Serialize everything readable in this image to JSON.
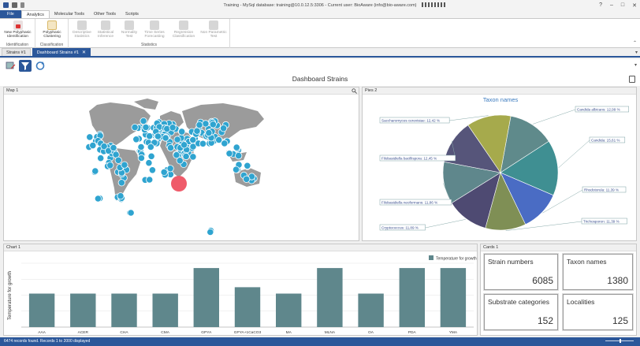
{
  "window": {
    "title": "Training - MySql database: training@10.0.12.5:3306 - Current user: BioAware (info@bio-aware.com)",
    "controls": [
      "?",
      "–",
      "□",
      "✕"
    ]
  },
  "ribbon_tabs": [
    "File",
    "Analytics",
    "Molecular Tools",
    "Other Tools",
    "Scripts"
  ],
  "ribbon": {
    "groups": [
      {
        "label": "Identification",
        "buttons": [
          {
            "label1": "New Polyphasic",
            "label2": "Identification",
            "icon": "id-icon",
            "disabled": false
          }
        ]
      },
      {
        "label": "Classification",
        "buttons": [
          {
            "label1": "Polyphasic",
            "label2": "Clustering",
            "icon": "clustering-icon",
            "disabled": false
          }
        ]
      },
      {
        "label": "Statistics",
        "buttons": [
          {
            "label1": "Descriptive",
            "label2": "Statistics",
            "icon": "bar-chart-icon",
            "disabled": true
          },
          {
            "label1": "Statistical",
            "label2": "Inference",
            "icon": "inference-icon",
            "disabled": true
          },
          {
            "label1": "Normality",
            "label2": "Test",
            "icon": "normality-icon",
            "disabled": true
          },
          {
            "label1": "Time Series",
            "label2": "Forecasting",
            "icon": "timeseries-icon",
            "disabled": true
          },
          {
            "label1": "Regression",
            "label2": "Classification",
            "icon": "regression-icon",
            "disabled": true
          },
          {
            "label1": "Non Parametric",
            "label2": "Test",
            "icon": "nonparametric-icon",
            "disabled": true
          }
        ]
      }
    ]
  },
  "doc_tabs": [
    {
      "label": "Strains #1",
      "active": false
    },
    {
      "label": "Dashboard Strains #1",
      "active": true
    }
  ],
  "dashboard": {
    "title": "Dashboard Strains"
  },
  "panels": {
    "map": {
      "title": "Map 1"
    },
    "pie": {
      "title": "Pies 2"
    },
    "chart": {
      "title": "Chart 1"
    },
    "cards": {
      "title": "Cards 1"
    }
  },
  "cards": [
    {
      "label": "Strain numbers",
      "value": "6085"
    },
    {
      "label": "Taxon names",
      "value": "1380"
    },
    {
      "label": "Substrate categories",
      "value": "152"
    },
    {
      "label": "Localities",
      "value": "125"
    }
  ],
  "status": {
    "text": "6474 records found. Records 1 to 2000 displayed"
  },
  "chart_data": [
    {
      "type": "pie",
      "title": "Taxon names",
      "slices": [
        {
          "label": "Candida albicans",
          "value": 12.99,
          "display": "Candida albicans: 12,99 %",
          "color": "#5f8a8b"
        },
        {
          "label": "Candida",
          "value": 15.61,
          "display": "Candida: 15,61 %",
          "color": "#3f8f92"
        },
        {
          "label": "Rhodotorula",
          "value": 11.39,
          "display": "Rhodotorula: 11,39 %",
          "color": "#4a6cc4"
        },
        {
          "label": "Trichosporon",
          "value": 11.39,
          "display": "Trichosporon: 11,39 %",
          "color": "#7f8f55"
        },
        {
          "label": "Cryptococcus",
          "value": 11.89,
          "display": "Cryptococcus: 11,89 %",
          "color": "#4e4a72"
        },
        {
          "label": "Filobasidiella neoformans",
          "value": 11.86,
          "display": "Filobasidiella neoformans: 11,86 %",
          "color": "#5f878c"
        },
        {
          "label": "Filobasidiella bacillispora",
          "value": 12.45,
          "display": "Filobasidiella bacillispora: 12,45 %",
          "color": "#56557a"
        },
        {
          "label": "Saccharomyces cerevisiae",
          "value": 12.42,
          "display": "Saccharomyces cerevisiae: 12,42 %",
          "color": "#a6aa4c"
        }
      ]
    },
    {
      "type": "bar",
      "categories": [
        "AAA",
        "ACER",
        "CHA",
        "CMA",
        "GPYA",
        "GPYA+1CaCO3",
        "MA",
        "MLNA",
        "OA",
        "PDA",
        "YMA"
      ],
      "series": [
        {
          "name": "Temperature for growth",
          "values": [
            21,
            21,
            21,
            21,
            37,
            25,
            21,
            37,
            21,
            37,
            37
          ],
          "color": "#5f878c"
        }
      ],
      "ylabel": "Temperature for growth",
      "ylim": [
        0,
        40
      ]
    }
  ]
}
